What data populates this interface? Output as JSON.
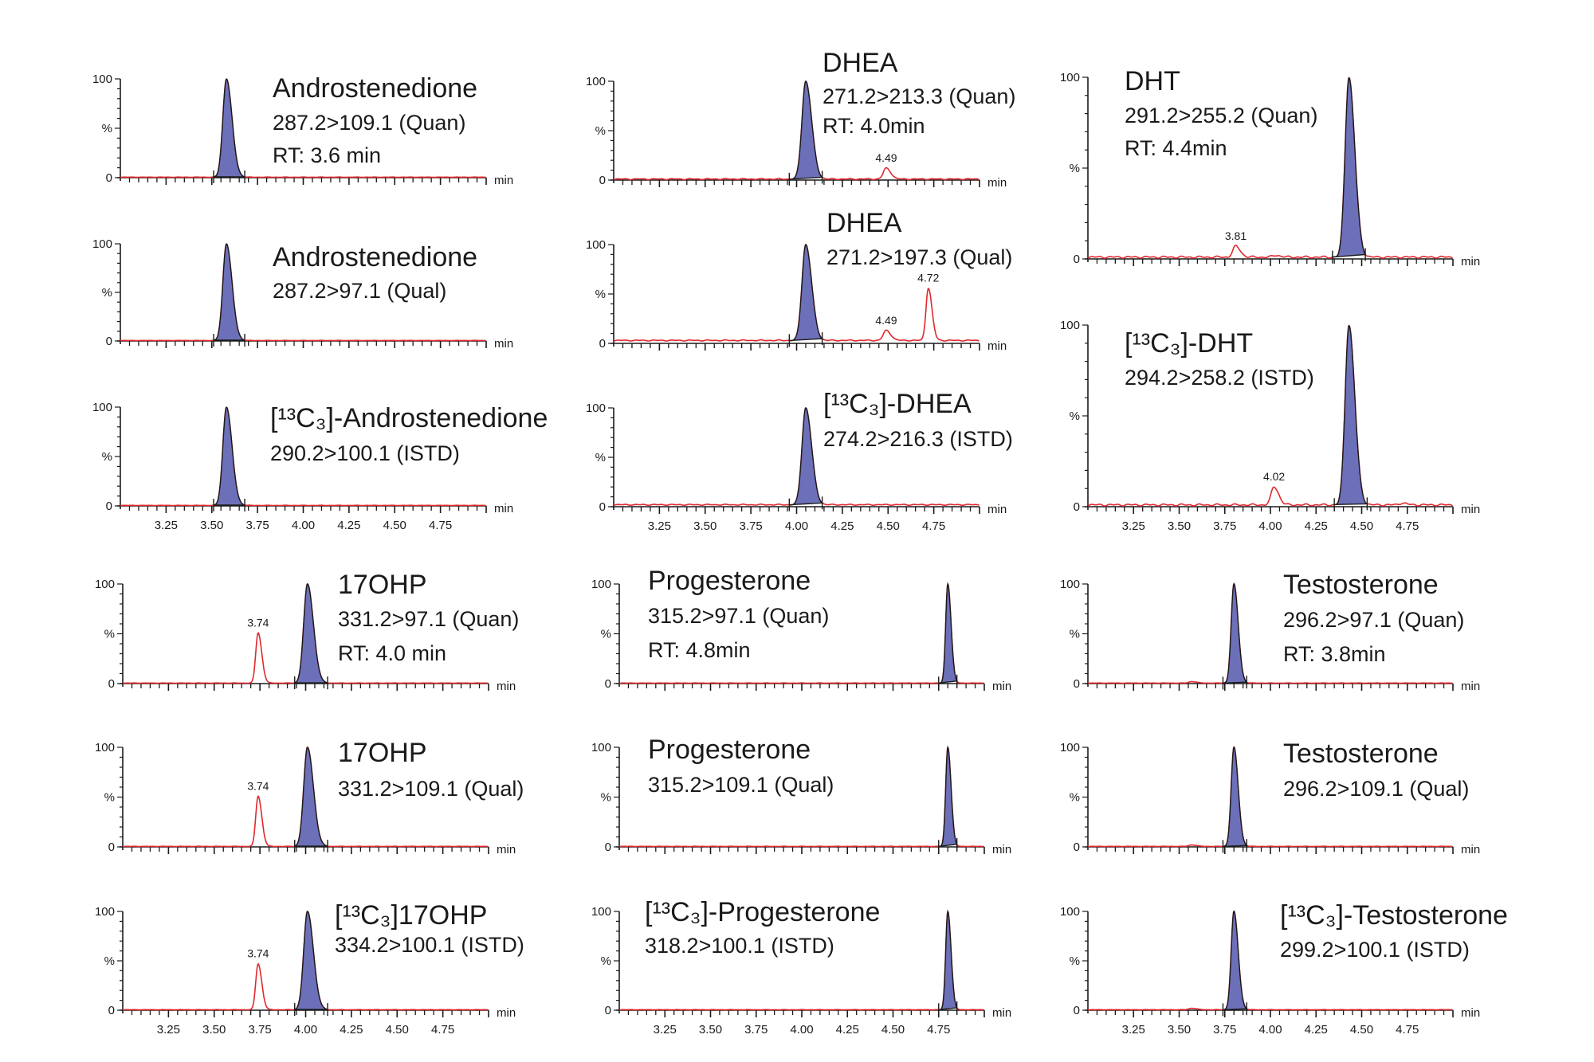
{
  "chart_data": [
    {
      "type": "line",
      "id": "A1",
      "title": "Androstenedione",
      "transition": "287.2>109.1 (Quan)",
      "rt": "RT: 3.6 min",
      "xlim": [
        3.0,
        5.0
      ],
      "ylim": [
        0,
        100
      ],
      "xlabel": "min",
      "yticks": [
        "100",
        "%",
        "0"
      ],
      "xtick_labels": [],
      "integrated": {
        "rt": 3.58,
        "height": 100,
        "from": 3.51,
        "to": 3.68
      },
      "other_peaks": [],
      "baseline": 0.5
    },
    {
      "type": "line",
      "id": "A2",
      "title": "Androstenedione",
      "transition": "287.2>97.1 (Qual)",
      "xlim": [
        3.0,
        5.0
      ],
      "ylim": [
        0,
        100
      ],
      "xlabel": "min",
      "yticks": [
        "100",
        "%",
        "0"
      ],
      "xtick_labels": [],
      "integrated": {
        "rt": 3.58,
        "height": 100,
        "from": 3.51,
        "to": 3.68
      },
      "other_peaks": [],
      "baseline": 0.5
    },
    {
      "type": "line",
      "id": "A3",
      "title": "[¹³C₃]-Androstenedione",
      "transition": "290.2>100.1 (ISTD)",
      "xlim": [
        3.0,
        5.0
      ],
      "ylim": [
        0,
        100
      ],
      "xlabel": "min",
      "yticks": [
        "100",
        "%",
        "0"
      ],
      "xtick_labels": [
        "3.25",
        "3.50",
        "3.75",
        "4.00",
        "4.25",
        "4.50",
        "4.75"
      ],
      "integrated": {
        "rt": 3.58,
        "height": 100,
        "from": 3.51,
        "to": 3.68
      },
      "other_peaks": [],
      "baseline": 0.5
    },
    {
      "type": "line",
      "id": "B1",
      "title": "DHEA",
      "transition": "271.2>213.3 (Quan)",
      "rt": "RT: 4.0min",
      "xlim": [
        3.0,
        5.0
      ],
      "ylim": [
        0,
        100
      ],
      "xlabel": "min",
      "yticks": [
        "100",
        "%",
        "0"
      ],
      "xtick_labels": [],
      "integrated": {
        "rt": 4.05,
        "height": 100,
        "from": 3.96,
        "to": 4.14
      },
      "other_peaks": [
        {
          "rt": 4.49,
          "height": 12,
          "label": "4.49"
        }
      ],
      "baseline": 1
    },
    {
      "type": "line",
      "id": "B2",
      "title": "DHEA",
      "transition": "271.2>197.3 (Qual)",
      "xlim": [
        3.0,
        5.0
      ],
      "ylim": [
        0,
        100
      ],
      "xlabel": "min",
      "yticks": [
        "100",
        "%",
        "0"
      ],
      "xtick_labels": [],
      "integrated": {
        "rt": 4.05,
        "height": 100,
        "from": 3.96,
        "to": 4.14
      },
      "other_peaks": [
        {
          "rt": 4.49,
          "height": 13,
          "label": "4.49"
        },
        {
          "rt": 4.72,
          "height": 56,
          "label": "4.72"
        }
      ],
      "baseline": 3
    },
    {
      "type": "line",
      "id": "B3",
      "title": "[¹³C₃]-DHEA",
      "transition": "274.2>216.3 (ISTD)",
      "xlim": [
        3.0,
        5.0
      ],
      "ylim": [
        0,
        100
      ],
      "xlabel": "min",
      "yticks": [
        "100",
        "%",
        "0"
      ],
      "xtick_labels": [
        "3.25",
        "3.50",
        "3.75",
        "4.00",
        "4.25",
        "4.50",
        "4.75"
      ],
      "integrated": {
        "rt": 4.05,
        "height": 100,
        "from": 3.96,
        "to": 4.14
      },
      "other_peaks": [],
      "baseline": 2
    },
    {
      "type": "line",
      "id": "C1",
      "title": "DHT",
      "transition": "291.2>255.2 (Quan)",
      "rt": "RT: 4.4min",
      "xlim": [
        3.0,
        5.0
      ],
      "ylim": [
        0,
        100
      ],
      "xlabel": "min",
      "yticks": [
        "100",
        "%",
        "0"
      ],
      "xtick_labels": [],
      "integrated": {
        "rt": 4.43,
        "height": 100,
        "from": 4.34,
        "to": 4.52
      },
      "other_peaks": [
        {
          "rt": 3.81,
          "height": 7,
          "label": "3.81"
        },
        {
          "rt": 4.03,
          "height": 2
        }
      ],
      "baseline": 1
    },
    {
      "type": "line",
      "id": "C2",
      "title": "[¹³C₃]-DHT",
      "transition": "294.2>258.2 (ISTD)",
      "xlim": [
        3.0,
        5.0
      ],
      "ylim": [
        0,
        100
      ],
      "xlabel": "min",
      "yticks": [
        "100",
        "%",
        "0"
      ],
      "xtick_labels": [
        "3.25",
        "3.50",
        "3.75",
        "4.00",
        "4.25",
        "4.50",
        "4.75"
      ],
      "integrated": {
        "rt": 4.43,
        "height": 100,
        "from": 4.35,
        "to": 4.53
      },
      "other_peaks": [
        {
          "rt": 4.02,
          "height": 11,
          "label": "4.02"
        },
        {
          "rt": 4.72,
          "height": 2
        }
      ],
      "baseline": 1
    },
    {
      "type": "line",
      "id": "A4",
      "title": "17OHP",
      "transition": "331.2>97.1 (Quan)",
      "rt": "RT: 4.0 min",
      "xlim": [
        3.0,
        5.0
      ],
      "ylim": [
        0,
        100
      ],
      "xlabel": "min",
      "yticks": [
        "100",
        "%",
        "0"
      ],
      "xtick_labels": [],
      "integrated": {
        "rt": 4.01,
        "height": 100,
        "from": 3.94,
        "to": 4.12
      },
      "other_peaks": [
        {
          "rt": 3.74,
          "height": 51,
          "label": "3.74"
        }
      ],
      "baseline": 0.5
    },
    {
      "type": "line",
      "id": "A5",
      "title": "17OHP",
      "transition": "331.2>109.1 (Qual)",
      "xlim": [
        3.0,
        5.0
      ],
      "ylim": [
        0,
        100
      ],
      "xlabel": "min",
      "yticks": [
        "100",
        "%",
        "0"
      ],
      "xtick_labels": [],
      "integrated": {
        "rt": 4.01,
        "height": 100,
        "from": 3.94,
        "to": 4.12
      },
      "other_peaks": [
        {
          "rt": 3.74,
          "height": 51,
          "label": "3.74"
        }
      ],
      "baseline": 0.5
    },
    {
      "type": "line",
      "id": "A6",
      "title": "[¹³C₃]17OHP",
      "transition": "334.2>100.1 (ISTD)",
      "xlim": [
        3.0,
        5.0
      ],
      "ylim": [
        0,
        100
      ],
      "xlabel": "min",
      "yticks": [
        "100",
        "%",
        "0"
      ],
      "xtick_labels": [
        "3.25",
        "3.50",
        "3.75",
        "4.00",
        "4.25",
        "4.50",
        "4.75"
      ],
      "integrated": {
        "rt": 4.01,
        "height": 100,
        "from": 3.94,
        "to": 4.12
      },
      "other_peaks": [
        {
          "rt": 3.74,
          "height": 47,
          "label": "3.74"
        }
      ],
      "baseline": 0.5
    },
    {
      "type": "line",
      "id": "B4",
      "title": "Progesterone",
      "transition": "315.2>97.1 (Quan)",
      "rt": "RT: 4.8min",
      "xlim": [
        3.0,
        5.0
      ],
      "ylim": [
        0,
        100
      ],
      "xlabel": "min",
      "yticks": [
        "100",
        "%",
        "0"
      ],
      "xtick_labels": [],
      "integrated": {
        "rt": 4.8,
        "height": 100,
        "from": 4.75,
        "to": 4.85
      },
      "other_peaks": [],
      "baseline": 0.5
    },
    {
      "type": "line",
      "id": "B5",
      "title": "Progesterone",
      "transition": "315.2>109.1 (Qual)",
      "xlim": [
        3.0,
        5.0
      ],
      "ylim": [
        0,
        100
      ],
      "xlabel": "min",
      "yticks": [
        "100",
        "%",
        "0"
      ],
      "xtick_labels": [],
      "integrated": {
        "rt": 4.8,
        "height": 100,
        "from": 4.75,
        "to": 4.85
      },
      "other_peaks": [],
      "baseline": 0.5
    },
    {
      "type": "line",
      "id": "B6",
      "title": "[¹³C₃]-Progesterone",
      "transition": "318.2>100.1 (ISTD)",
      "xlim": [
        3.0,
        5.0
      ],
      "ylim": [
        0,
        100
      ],
      "xlabel": "min",
      "yticks": [
        "100",
        "%",
        "0"
      ],
      "xtick_labels": [
        "3.25",
        "3.50",
        "3.75",
        "4.00",
        "4.25",
        "4.50",
        "4.75"
      ],
      "integrated": {
        "rt": 4.8,
        "height": 100,
        "from": 4.75,
        "to": 4.85
      },
      "other_peaks": [],
      "baseline": 0.5
    },
    {
      "type": "line",
      "id": "C4",
      "title": "Testosterone",
      "transition": "296.2>97.1 (Quan)",
      "rt": "RT: 3.8min",
      "xlim": [
        3.0,
        5.0
      ],
      "ylim": [
        0,
        100
      ],
      "xlabel": "min",
      "yticks": [
        "100",
        "%",
        "0"
      ],
      "xtick_labels": [],
      "integrated": {
        "rt": 3.8,
        "height": 100,
        "from": 3.74,
        "to": 3.87
      },
      "other_peaks": [
        {
          "rt": 3.57,
          "height": 2
        }
      ],
      "baseline": 0.5
    },
    {
      "type": "line",
      "id": "C5",
      "title": "Testosterone",
      "transition": "296.2>109.1 (Qual)",
      "xlim": [
        3.0,
        5.0
      ],
      "ylim": [
        0,
        100
      ],
      "xlabel": "min",
      "yticks": [
        "100",
        "%",
        "0"
      ],
      "xtick_labels": [],
      "integrated": {
        "rt": 3.8,
        "height": 100,
        "from": 3.74,
        "to": 3.87
      },
      "other_peaks": [
        {
          "rt": 3.57,
          "height": 2
        }
      ],
      "baseline": 0.5
    },
    {
      "type": "line",
      "id": "C6",
      "title": "[¹³C₃]-Testosterone",
      "transition": "299.2>100.1 (ISTD)",
      "xlim": [
        3.0,
        5.0
      ],
      "ylim": [
        0,
        100
      ],
      "xlabel": "min",
      "yticks": [
        "100",
        "%",
        "0"
      ],
      "xtick_labels": [
        "3.25",
        "3.50",
        "3.75",
        "4.00",
        "4.25",
        "4.50",
        "4.75"
      ],
      "integrated": {
        "rt": 3.8,
        "height": 100,
        "from": 3.74,
        "to": 3.87
      },
      "other_peaks": [
        {
          "rt": 3.57,
          "height": 2
        }
      ],
      "baseline": 0.5
    }
  ],
  "colors": {
    "trace": "#e0282e",
    "peak_fill": "#6c70b8",
    "outline": "#1a1a1a",
    "axis": "#1a1a1a"
  }
}
